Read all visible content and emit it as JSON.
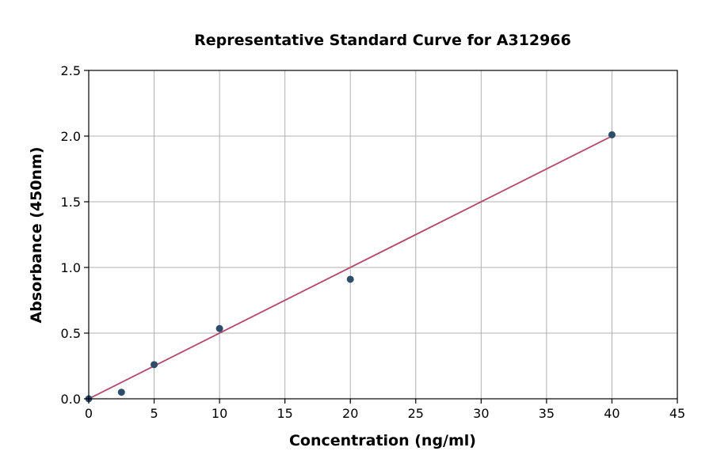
{
  "chart_data": {
    "type": "scatter",
    "title": "Representative Standard Curve for A312966",
    "xlabel": "Concentration (ng/ml)",
    "ylabel": "Absorbance (450nm)",
    "xlim": [
      0,
      45
    ],
    "ylim": [
      0.0,
      2.5
    ],
    "xticks": [
      0,
      5,
      10,
      15,
      20,
      25,
      30,
      35,
      40,
      45
    ],
    "xtick_labels": [
      "0",
      "5",
      "10",
      "15",
      "20",
      "25",
      "30",
      "35",
      "40",
      "45"
    ],
    "yticks": [
      0.0,
      0.5,
      1.0,
      1.5,
      2.0,
      2.5
    ],
    "ytick_labels": [
      "0.0",
      "0.5",
      "1.0",
      "1.5",
      "2.0",
      "2.5"
    ],
    "grid": true,
    "series": [
      {
        "kind": "points",
        "color": "#2e4d6b",
        "x": [
          0,
          2.5,
          5,
          10,
          20,
          40
        ],
        "y": [
          0.0,
          0.05,
          0.26,
          0.535,
          0.91,
          2.01
        ]
      },
      {
        "kind": "fit-line",
        "color": "#b5476b",
        "x": [
          0,
          40
        ],
        "y": [
          0.0,
          2.0
        ]
      }
    ]
  }
}
